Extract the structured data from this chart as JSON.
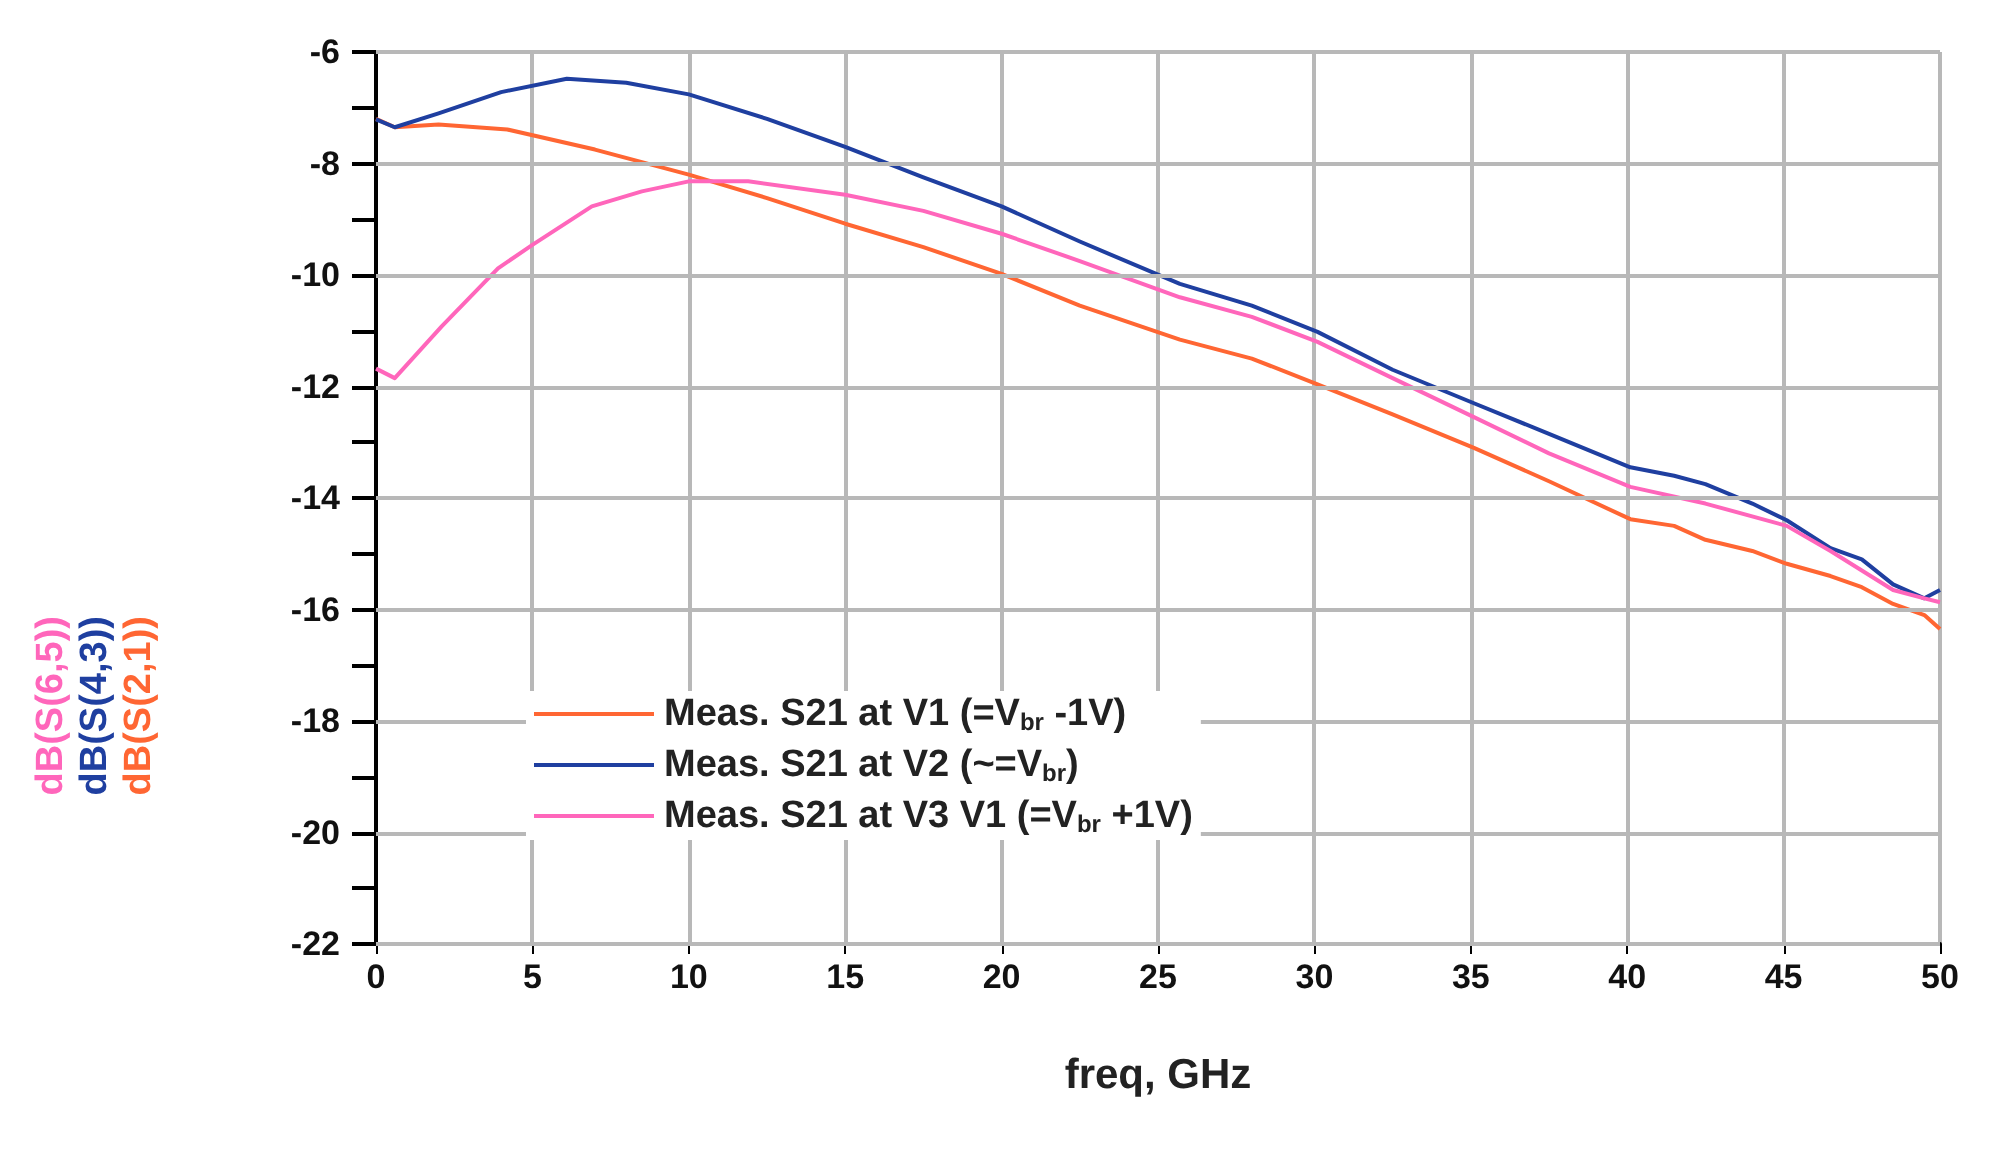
{
  "chart_data": {
    "type": "line",
    "xlabel": "freq, GHz",
    "annotations": [
      "dB(S(6,5))",
      "dB(S(4,3))",
      "dB(S(2,1))"
    ],
    "xlim": [
      0,
      50
    ],
    "xticks": [
      0,
      5,
      10,
      15,
      20,
      25,
      30,
      35,
      40,
      45,
      50
    ],
    "ylim": [
      -22,
      -6
    ],
    "yticks": [
      -22,
      {
        "value": -21,
        "label": null
      },
      -20,
      {
        "value": -19,
        "label": null
      },
      -18,
      {
        "value": -17,
        "label": null
      },
      -16,
      {
        "value": -15,
        "label": null
      },
      -14,
      {
        "value": -13,
        "label": null
      },
      -12,
      {
        "value": -11,
        "label": null
      },
      -10,
      {
        "value": -9,
        "label": null
      },
      -8,
      {
        "value": -7,
        "label": null
      },
      -6
    ],
    "grid": true,
    "legend": "bottom left",
    "marker": "none",
    "line_style": "solid",
    "series": [
      {
        "name": "Meas. S21 at V1 (=V$_{br}$ -1V)",
        "color": "#ff6633",
        "x": [
          0,
          0.6,
          2,
          4.2,
          7,
          10,
          12.5,
          15,
          17.5,
          20,
          22.5,
          25.7,
          28,
          30.1,
          32.5,
          35.1,
          37.5,
          40.1,
          41.5,
          42.5,
          44,
          45.1,
          46.5,
          47.5,
          48.5,
          49.5,
          50
        ],
        "values": [
          -7.2,
          -7.35,
          -7.3,
          -7.39,
          -7.75,
          -8.2,
          -8.62,
          -9.08,
          -9.5,
          -9.98,
          -10.55,
          -11.16,
          -11.5,
          -11.96,
          -12.5,
          -13.1,
          -13.7,
          -14.38,
          -14.5,
          -14.75,
          -14.95,
          -15.18,
          -15.4,
          -15.6,
          -15.9,
          -16.1,
          -16.35
        ]
      },
      {
        "name": "Meas. S21 at V2 (~=V$_{br}$)",
        "color": "#1f3fa0",
        "x": [
          0,
          0.6,
          2,
          4,
          6.1,
          8,
          10,
          12.5,
          15,
          17.5,
          20,
          22.5,
          25.7,
          28,
          30.1,
          32.5,
          35.1,
          37.5,
          40.1,
          41.5,
          42.5,
          44,
          45.1,
          46.5,
          47.5,
          48.5,
          49.5,
          50
        ],
        "values": [
          -7.21,
          -7.35,
          -7.1,
          -6.72,
          -6.48,
          -6.55,
          -6.76,
          -7.2,
          -7.7,
          -8.25,
          -8.77,
          -9.4,
          -10.16,
          -10.55,
          -11.02,
          -11.7,
          -12.3,
          -12.85,
          -13.45,
          -13.6,
          -13.75,
          -14.1,
          -14.4,
          -14.9,
          -15.1,
          -15.55,
          -15.8,
          -15.65
        ]
      },
      {
        "name": "Meas. S21 at V3 V1 (=V$_{br}$ +1V)",
        "color": "#ff66bb",
        "x": [
          0,
          0.6,
          2.1,
          3.9,
          5,
          6.9,
          8.5,
          10,
          11.9,
          15,
          17.5,
          20,
          22.5,
          25.7,
          28,
          30.1,
          32.5,
          35.1,
          37.5,
          40.1,
          42.5,
          45.1,
          46.5,
          47.5,
          48.5,
          49.5,
          50
        ],
        "values": [
          -11.68,
          -11.85,
          -10.92,
          -9.88,
          -9.46,
          -8.77,
          -8.5,
          -8.32,
          -8.32,
          -8.56,
          -8.85,
          -9.26,
          -9.75,
          -10.4,
          -10.75,
          -11.2,
          -11.85,
          -12.55,
          -13.2,
          -13.8,
          -14.1,
          -14.5,
          -14.95,
          -15.3,
          -15.65,
          -15.8,
          -15.87
        ]
      }
    ]
  }
}
